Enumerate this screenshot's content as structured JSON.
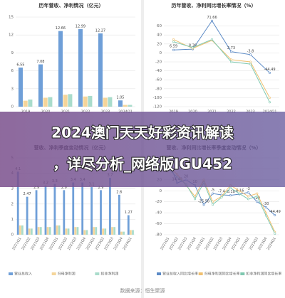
{
  "chart_data": [
    {
      "type": "bar",
      "title": "历年营收、净利情况（亿元）",
      "categories": [
        "2019",
        "2020",
        "2021",
        "2022",
        "2023",
        "2024Q1"
      ],
      "ylim": [
        0,
        15
      ],
      "yticks": [
        0,
        3,
        6,
        9,
        12,
        15
      ],
      "grid": true,
      "series": [
        {
          "color": "#6f9fd8",
          "labels": true,
          "values": [
            6.55,
            7.08,
            12.66,
            12.99,
            12.27,
            1.05
          ]
        },
        {
          "color": "#f5d59a",
          "values": [
            1.0,
            1.5,
            2.0,
            1.7,
            1.5,
            0.3
          ]
        },
        {
          "color": "#a9dccb",
          "values": [
            1.2,
            1.6,
            2.1,
            1.8,
            1.6,
            0.3
          ]
        }
      ]
    },
    {
      "type": "line",
      "title": "历年营收、净利同比增长率情况（%）",
      "categories": [
        "2019",
        "2020",
        "2021",
        "2022",
        "2023",
        "2024Q1"
      ],
      "ylim": [
        -120,
        80
      ],
      "yticks": [
        -120,
        -100,
        -80,
        -60,
        -40,
        -20,
        0,
        20,
        40,
        60
      ],
      "grid": true,
      "series": [
        {
          "color": "#5b8ac6",
          "labels": true,
          "values": [
            6.59,
            8.38,
            71.66,
            2.73,
            -3.8,
            -44.49
          ]
        },
        {
          "color": "#f0c070",
          "values": [
            30,
            10,
            28,
            -15,
            -20,
            -100
          ]
        },
        {
          "color": "#7fc8b0",
          "values": [
            25,
            12,
            30,
            -20,
            -25,
            -110
          ]
        }
      ]
    },
    {
      "type": "bar",
      "title": "营收、净利季度变动情况（亿元）",
      "categories": [
        "2021Q1",
        "2021Q2",
        "2021Q3",
        "2021Q4",
        "2022Q1",
        "2022Q2",
        "2022Q3",
        "2022Q4",
        "2023Q1",
        "2023Q2",
        "2023Q3",
        "2023Q4",
        "2024Q1"
      ],
      "ylim": [
        0,
        5
      ],
      "yticks": [
        0,
        1,
        2,
        3,
        4,
        5
      ],
      "grid": true,
      "series": [
        {
          "name": "营业总收入",
          "color": "#6f9fd8",
          "labels": true,
          "values": [
            4.1,
            2.47,
            2.9,
            3.2,
            3.3,
            2.9,
            3.4,
            3.4,
            3.1,
            2.9,
            3.7,
            2.6,
            1.27
          ]
        },
        {
          "name": "归母净利润",
          "color": "#f5d59a",
          "values": [
            0.6,
            0.4,
            0.5,
            0.5,
            0.6,
            0.4,
            0.5,
            0.3,
            0.5,
            0.4,
            0.5,
            0.2,
            0.3
          ]
        },
        {
          "name": "扣非净利润",
          "color": "#a9dccb",
          "values": [
            0.6,
            0.4,
            0.5,
            0.5,
            0.6,
            0.4,
            0.5,
            0.3,
            0.5,
            0.4,
            0.5,
            0.2,
            0.3
          ]
        }
      ]
    },
    {
      "type": "line",
      "title": "营收、净利同比增长率季度变动情况（%）",
      "categories": [
        "2021Q1",
        "2021Q2",
        "2021Q3",
        "2021Q4",
        "2022Q1",
        "2022Q2",
        "2022Q3",
        "2022Q4",
        "2023Q1",
        "2023Q2",
        "2023Q3",
        "2023Q4",
        "2024Q1"
      ],
      "ylim": [
        -80,
        60
      ],
      "yticks": [
        -80,
        -60,
        -40,
        -20,
        0,
        20,
        40,
        60
      ],
      "grid": true,
      "series": [
        {
          "name": "营业总收入同比增长率",
          "color": "#5b8ac6",
          "labels": true,
          "values": [
            55,
            14.49,
            20,
            10,
            -25.58,
            -5,
            -7.4,
            -8.18,
            -6.16,
            -3,
            -20,
            -30,
            -44.49
          ]
        },
        {
          "name": "归母净利润同比增长率",
          "color": "#f0c070",
          "values": [
            45,
            30,
            10,
            -10,
            20,
            -20,
            -10,
            10,
            0,
            -10,
            -5,
            -40,
            -75
          ]
        },
        {
          "name": "扣非净利润同比增长率",
          "color": "#7fc8b0",
          "values": [
            40,
            25,
            12,
            -15,
            15,
            -25,
            -12,
            5,
            -5,
            -15,
            -10,
            -45,
            -78
          ]
        }
      ]
    }
  ],
  "banner": {
    "lines": [
      "2024澳门天天好彩资讯解读",
      "，详尽分析_网络版IGU452"
    ]
  },
  "footer": "数据来源：恒生聚源"
}
